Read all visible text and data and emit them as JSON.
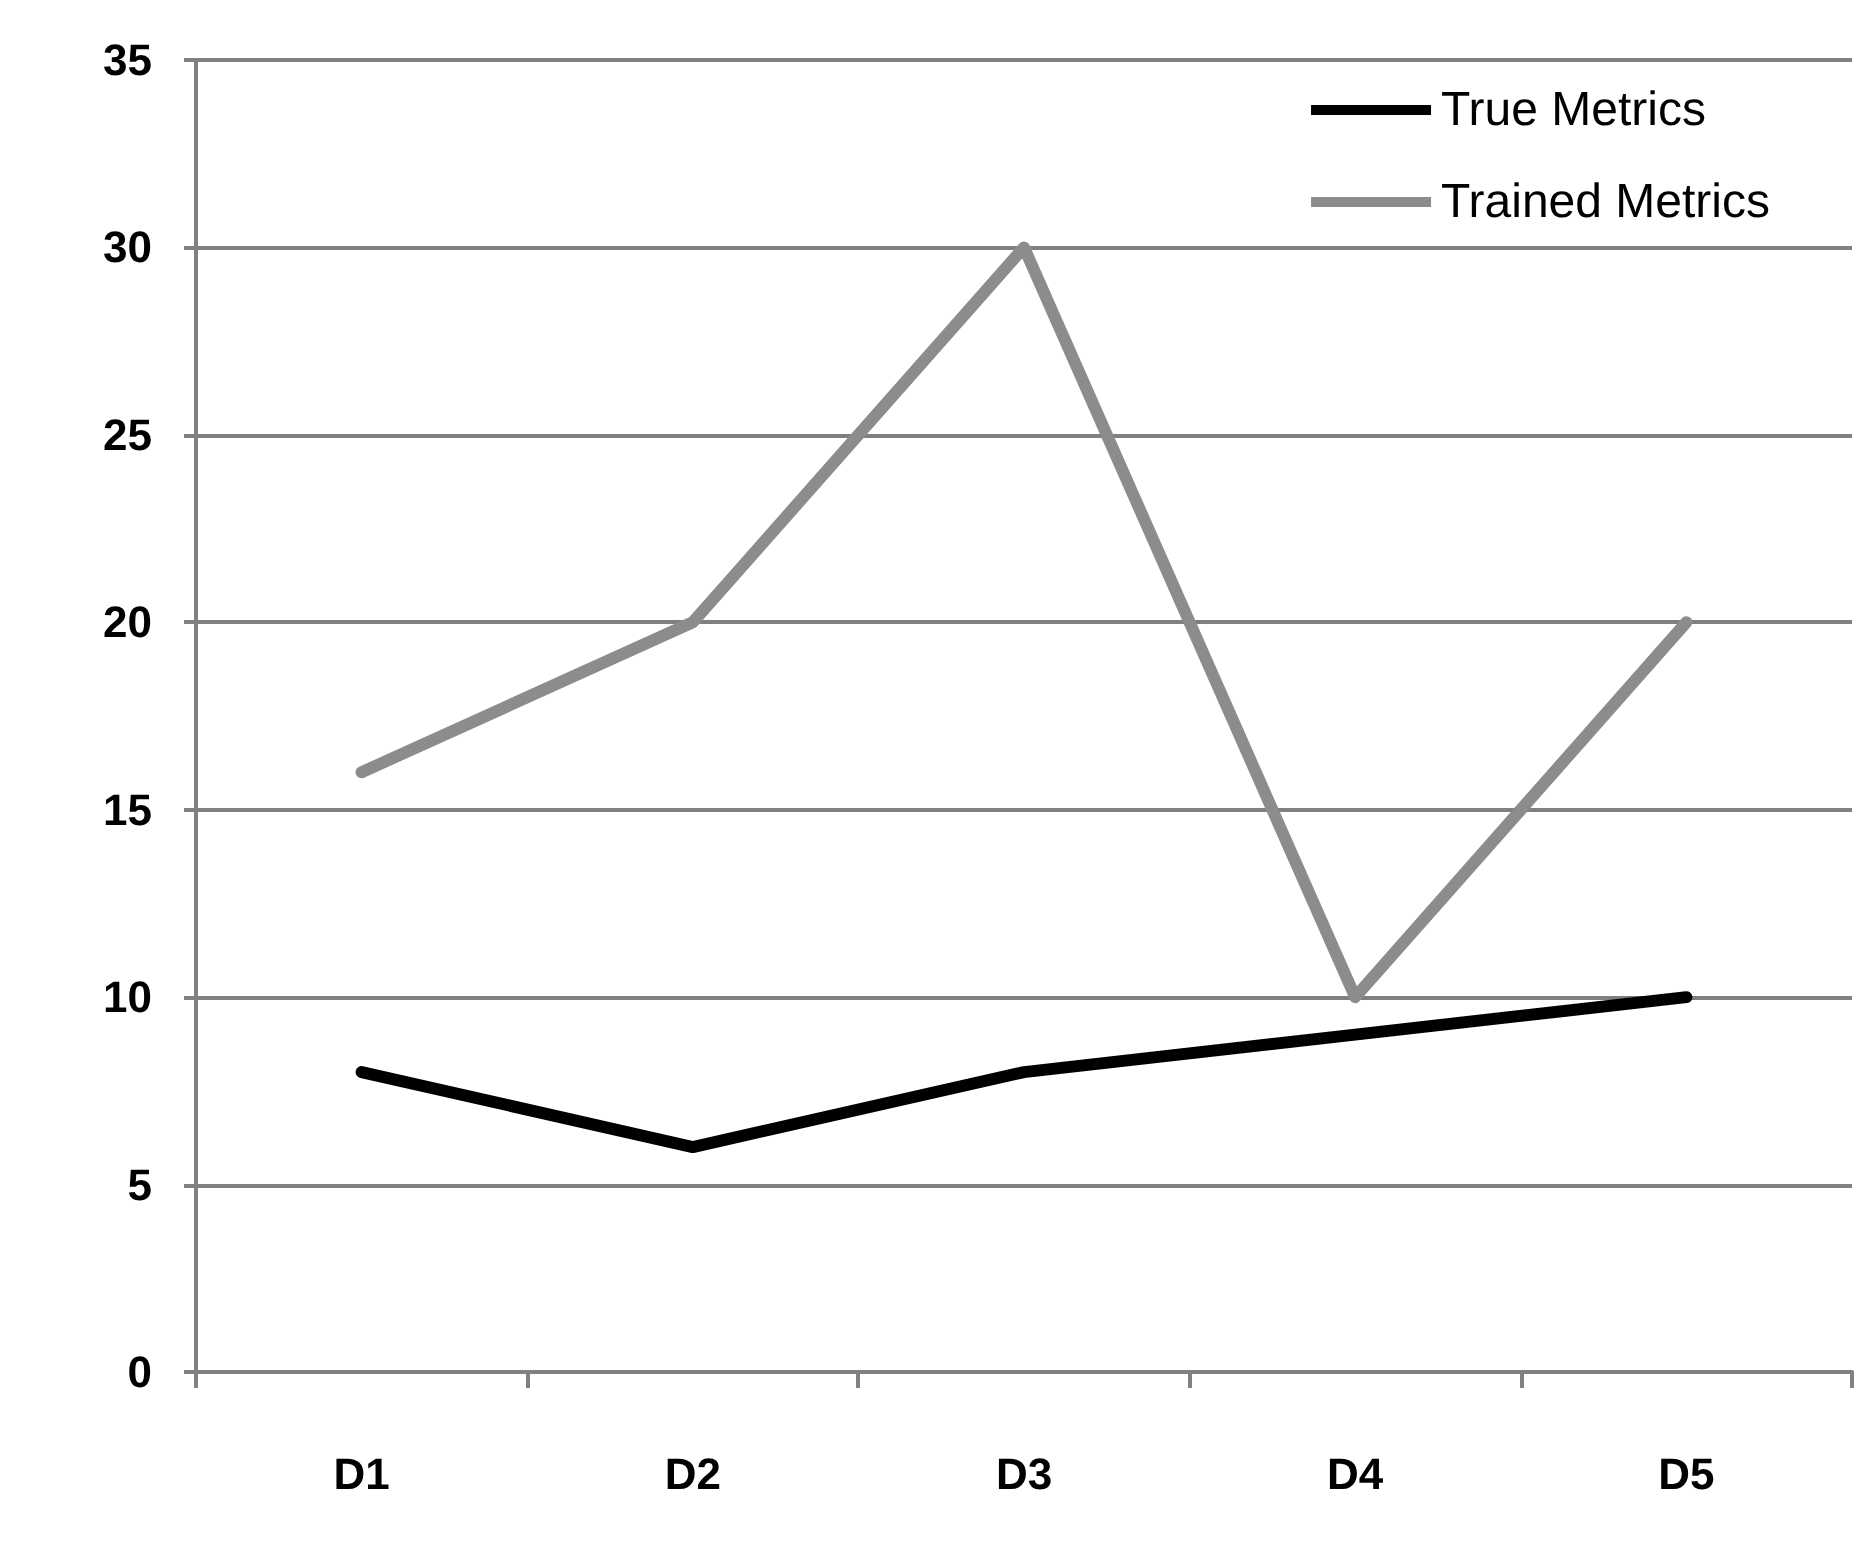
{
  "chart_data": {
    "type": "line",
    "categories": [
      "D1",
      "D2",
      "D3",
      "D4",
      "D5"
    ],
    "series": [
      {
        "name": "True Metrics",
        "color": "#000000",
        "values": [
          8,
          6,
          8,
          9,
          10
        ]
      },
      {
        "name": "Trained Metrics",
        "color": "#8c8c8c",
        "values": [
          16,
          20,
          30,
          10,
          20
        ]
      }
    ],
    "ylim": [
      0,
      35
    ],
    "yticks": [
      0,
      5,
      10,
      15,
      20,
      25,
      30,
      35
    ],
    "grid": "y",
    "legend": "top right",
    "marker": "none",
    "line_style": "solid"
  }
}
